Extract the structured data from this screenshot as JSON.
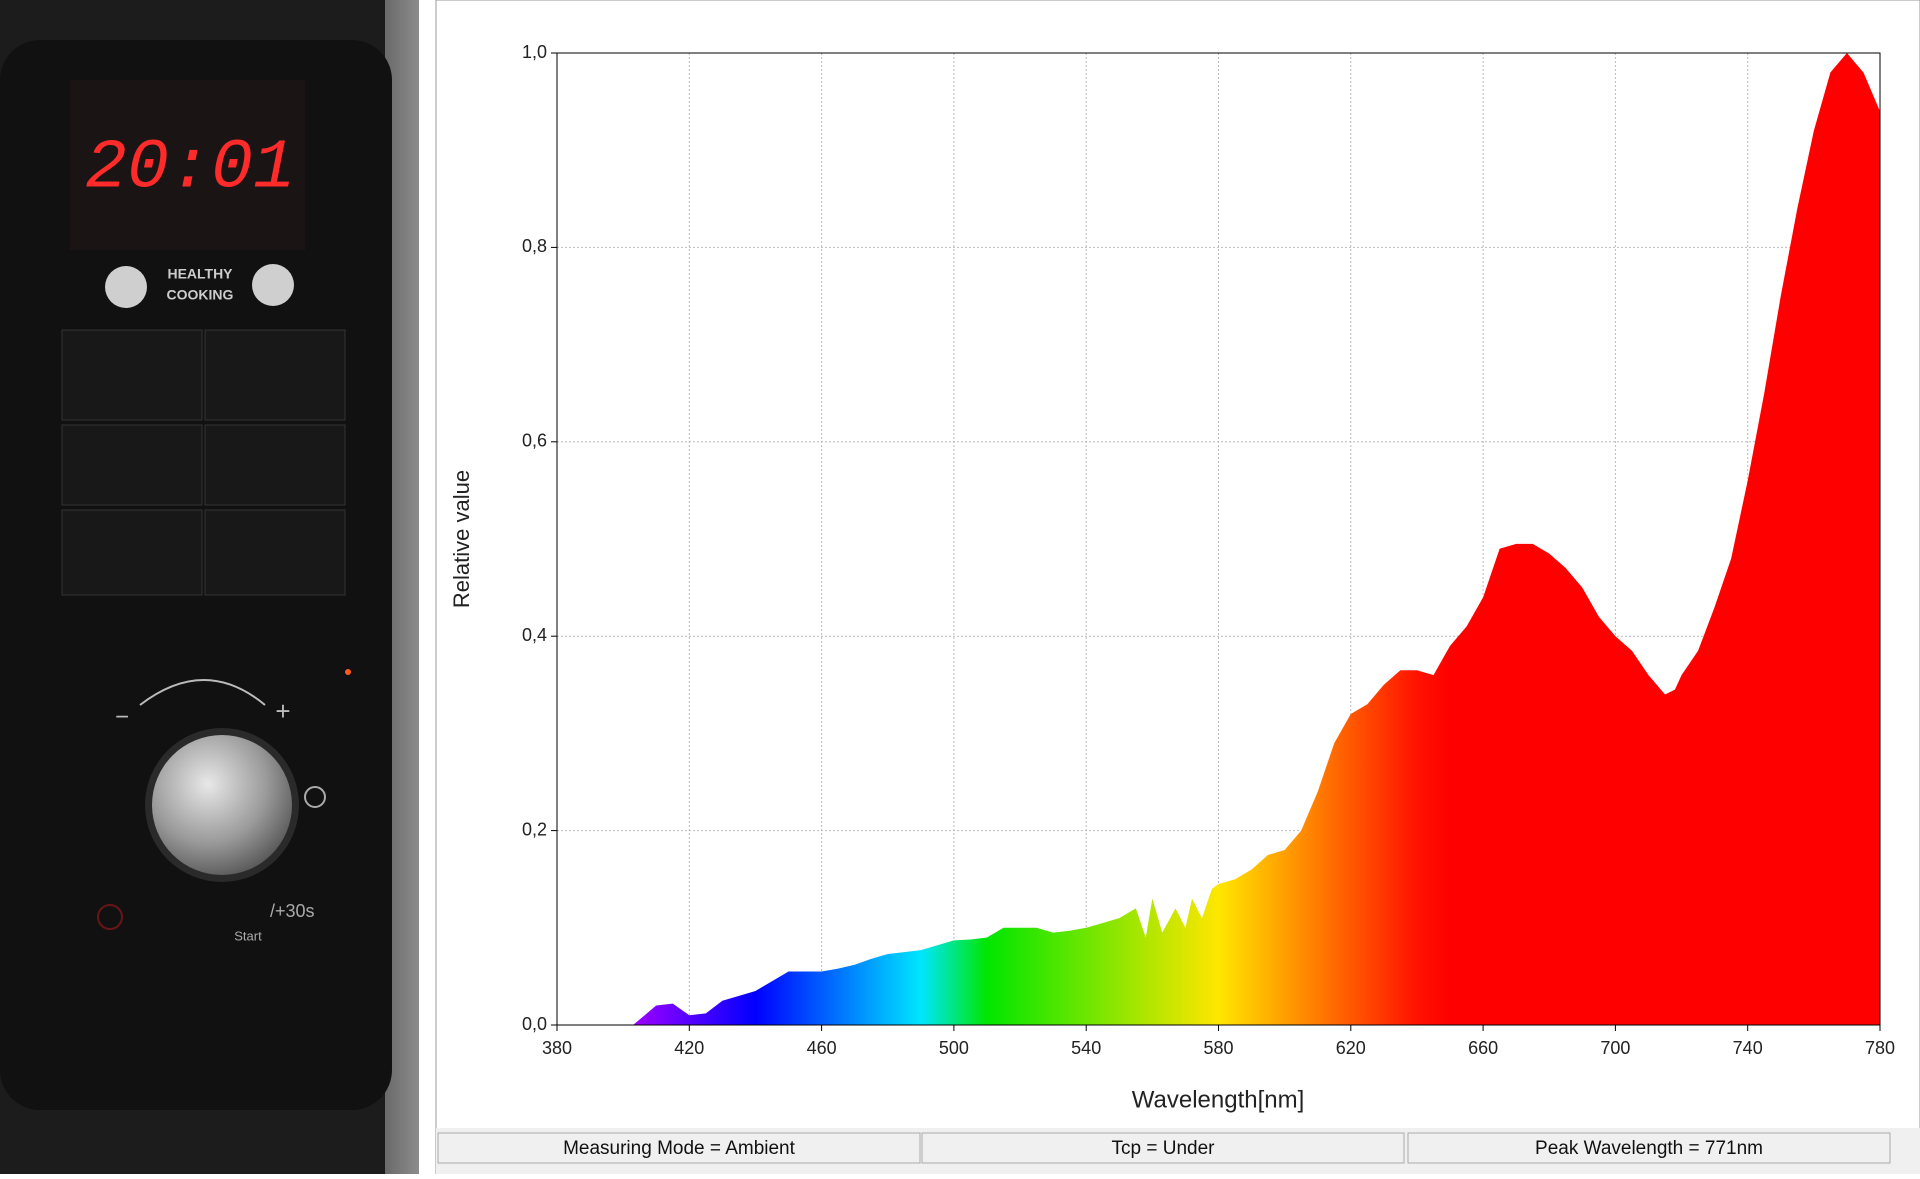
{
  "photo": {
    "display": "20:01",
    "badge_line1": "HEALTHY",
    "badge_line2": "COOKING",
    "plus_button": "/+30s",
    "start_button": "Start",
    "knob_minus": "−",
    "knob_plus": "+"
  },
  "chart_data": {
    "type": "area",
    "x_label": "Wavelength[nm]",
    "y_label": "Relative value",
    "x": [
      403,
      410,
      415,
      420,
      425,
      430,
      435,
      440,
      445,
      450,
      455,
      460,
      465,
      470,
      475,
      480,
      485,
      490,
      495,
      500,
      505,
      510,
      515,
      520,
      525,
      530,
      535,
      540,
      545,
      550,
      555,
      558,
      560,
      563,
      567,
      570,
      572,
      575,
      578,
      580,
      585,
      590,
      595,
      600,
      605,
      610,
      615,
      620,
      625,
      630,
      635,
      640,
      645,
      650,
      655,
      660,
      665,
      670,
      675,
      680,
      685,
      690,
      695,
      700,
      705,
      710,
      715,
      718,
      720,
      725,
      730,
      735,
      740,
      745,
      750,
      755,
      760,
      765,
      770,
      775,
      780
    ],
    "series": [
      {
        "name": "Relative value",
        "values": [
          0,
          0.02,
          0.022,
          0.01,
          0.012,
          0.025,
          0.03,
          0.035,
          0.045,
          0.055,
          0.055,
          0.055,
          0.058,
          0.062,
          0.068,
          0.073,
          0.075,
          0.077,
          0.082,
          0.087,
          0.088,
          0.09,
          0.1,
          0.1,
          0.1,
          0.095,
          0.097,
          0.1,
          0.105,
          0.11,
          0.12,
          0.09,
          0.13,
          0.095,
          0.12,
          0.1,
          0.13,
          0.11,
          0.14,
          0.145,
          0.15,
          0.16,
          0.175,
          0.18,
          0.2,
          0.24,
          0.29,
          0.32,
          0.33,
          0.35,
          0.365,
          0.365,
          0.36,
          0.39,
          0.41,
          0.44,
          0.49,
          0.495,
          0.495,
          0.485,
          0.47,
          0.45,
          0.42,
          0.4,
          0.385,
          0.36,
          0.34,
          0.345,
          0.36,
          0.385,
          0.43,
          0.48,
          0.56,
          0.65,
          0.75,
          0.84,
          0.92,
          0.98,
          1.0,
          0.98,
          0.94
        ]
      }
    ],
    "xlim": [
      380,
      780
    ],
    "xticks": [
      380,
      420,
      460,
      500,
      540,
      580,
      620,
      660,
      700,
      740,
      780
    ],
    "ylim": [
      0,
      1
    ],
    "yticks": [
      {
        "value": 0,
        "label": "0,0"
      },
      {
        "value": 0.2,
        "label": "0,2"
      },
      {
        "value": 0.4,
        "label": "0,4"
      },
      {
        "value": 0.6,
        "label": "0,6"
      },
      {
        "value": 0.8,
        "label": "0,8"
      },
      {
        "value": 1,
        "label": "1,0"
      }
    ],
    "grid": true,
    "fill": "spectrum"
  },
  "status_bar": [
    "Measuring Mode = Ambient",
    "Tcp = Under",
    "Peak Wavelength = 771nm"
  ]
}
